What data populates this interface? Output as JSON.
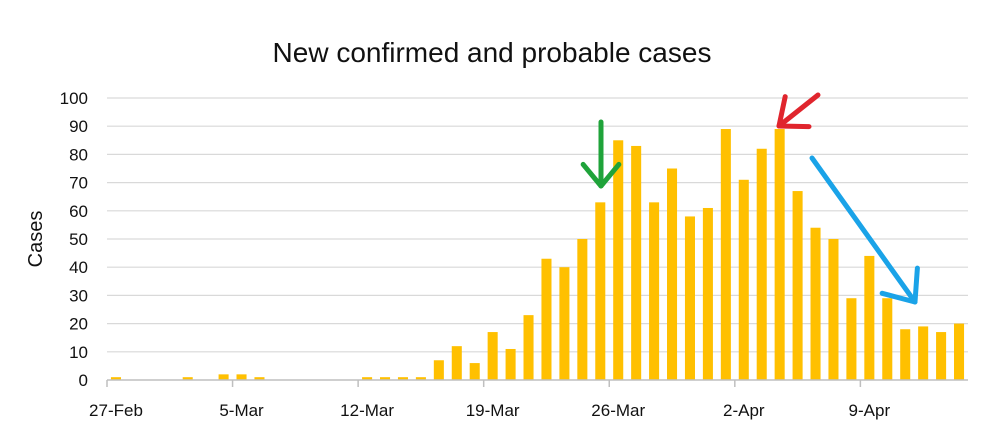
{
  "chart_data": {
    "type": "bar",
    "title": "New confirmed and probable cases",
    "xlabel": "",
    "ylabel": "Cases",
    "ylim": [
      0,
      100
    ],
    "yticks": [
      0,
      10,
      20,
      30,
      40,
      50,
      60,
      70,
      80,
      90,
      100
    ],
    "grid": true,
    "bar_color": "#FFC000",
    "categories": [
      "27-Feb",
      "28-Feb",
      "29-Feb",
      "1-Mar",
      "2-Mar",
      "3-Mar",
      "4-Mar",
      "5-Mar",
      "6-Mar",
      "7-Mar",
      "8-Mar",
      "9-Mar",
      "10-Mar",
      "11-Mar",
      "12-Mar",
      "13-Mar",
      "14-Mar",
      "15-Mar",
      "16-Mar",
      "17-Mar",
      "18-Mar",
      "19-Mar",
      "20-Mar",
      "21-Mar",
      "22-Mar",
      "23-Mar",
      "24-Mar",
      "25-Mar",
      "26-Mar",
      "27-Mar",
      "28-Mar",
      "29-Mar",
      "30-Mar",
      "31-Mar",
      "1-Apr",
      "2-Apr",
      "3-Apr",
      "4-Apr",
      "5-Apr",
      "6-Apr",
      "7-Apr",
      "8-Apr",
      "9-Apr",
      "10-Apr",
      "11-Apr",
      "12-Apr",
      "13-Apr",
      "14-Apr"
    ],
    "values": [
      1,
      0,
      0,
      0,
      1,
      0,
      2,
      2,
      1,
      0,
      0,
      0,
      0,
      0,
      1,
      1,
      1,
      1,
      7,
      12,
      6,
      17,
      11,
      23,
      43,
      40,
      50,
      63,
      85,
      83,
      63,
      75,
      58,
      61,
      89,
      71,
      82,
      89,
      67,
      54,
      50,
      29,
      44,
      29,
      18,
      19,
      17,
      20
    ],
    "xtick_labels": [
      "27-Feb",
      "5-Mar",
      "12-Mar",
      "19-Mar",
      "26-Mar",
      "2-Apr",
      "9-Apr"
    ],
    "xtick_indices": [
      0,
      7,
      14,
      21,
      28,
      35,
      42
    ],
    "annotations": [
      {
        "type": "arrow",
        "color": "#1FA33A",
        "points_to": "25-Mar"
      },
      {
        "type": "arrow",
        "color": "#E0252D",
        "points_to": "4-Apr"
      },
      {
        "type": "arrow",
        "color": "#1AA3E8",
        "points_to": "11-Apr"
      }
    ]
  }
}
